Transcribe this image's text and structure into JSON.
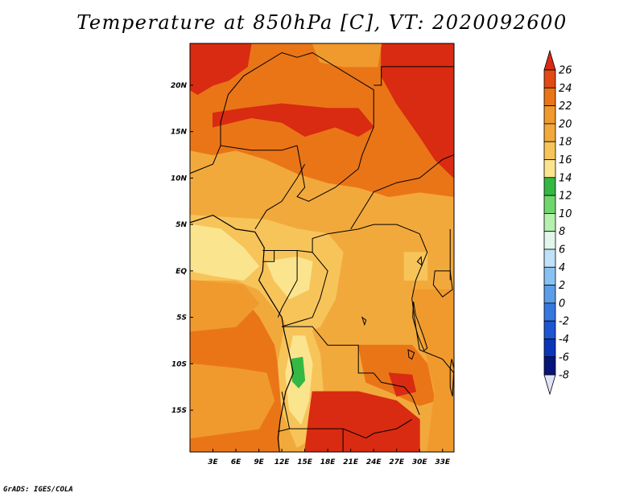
{
  "title": "Temperature at 850hPa [C], VT: 2020092600",
  "credit": "GrADS: IGES/COLA",
  "map": {
    "type": "filled-contour-map",
    "variable": "Temperature at 850hPa",
    "units": "C",
    "valid_time": "2020092600",
    "region_lon_range": [
      0,
      34.5
    ],
    "region_lat_range": [
      -19.5,
      24.5
    ],
    "lat_ticks": [
      {
        "value": 20,
        "label": "20N"
      },
      {
        "value": 15,
        "label": "15N"
      },
      {
        "value": 10,
        "label": "10N"
      },
      {
        "value": 5,
        "label": "5N"
      },
      {
        "value": 0,
        "label": "EQ"
      },
      {
        "value": -5,
        "label": "5S"
      },
      {
        "value": -10,
        "label": "10S"
      },
      {
        "value": -15,
        "label": "15S"
      }
    ],
    "lon_ticks": [
      {
        "value": 3,
        "label": "3E"
      },
      {
        "value": 6,
        "label": "6E"
      },
      {
        "value": 9,
        "label": "9E"
      },
      {
        "value": 12,
        "label": "12E"
      },
      {
        "value": 15,
        "label": "15E"
      },
      {
        "value": 18,
        "label": "18E"
      },
      {
        "value": 21,
        "label": "21E"
      },
      {
        "value": 24,
        "label": "24E"
      },
      {
        "value": 27,
        "label": "27E"
      },
      {
        "value": 30,
        "label": "30E"
      },
      {
        "value": 33,
        "label": "33E"
      }
    ],
    "base_color": "#f2a93c",
    "regions": [
      {
        "color": "#ea7517",
        "pts": [
          [
            0,
            24.5
          ],
          [
            34.5,
            24.5
          ],
          [
            34.5,
            8
          ],
          [
            30,
            8.5
          ],
          [
            26,
            8
          ],
          [
            22,
            9
          ],
          [
            18,
            9.5
          ],
          [
            14,
            10.5
          ],
          [
            10,
            12
          ],
          [
            6,
            13
          ],
          [
            3,
            12.5
          ],
          [
            0,
            13
          ]
        ]
      },
      {
        "color": "#d92b11",
        "pts": [
          [
            0,
            24.5
          ],
          [
            8,
            24.5
          ],
          [
            7.5,
            22
          ],
          [
            5,
            20.5
          ],
          [
            3,
            20
          ],
          [
            1,
            19
          ],
          [
            0,
            19.5
          ]
        ]
      },
      {
        "color": "#d92b11",
        "pts": [
          [
            3,
            15.5
          ],
          [
            8,
            16.5
          ],
          [
            12,
            16
          ],
          [
            15,
            14.5
          ],
          [
            19,
            15.5
          ],
          [
            22,
            14.5
          ],
          [
            24,
            15.5
          ],
          [
            22,
            17.5
          ],
          [
            18,
            17.5
          ],
          [
            12,
            18
          ],
          [
            7,
            17.5
          ],
          [
            3,
            17
          ]
        ]
      },
      {
        "color": "#d92b11",
        "pts": [
          [
            25,
            24.5
          ],
          [
            34.5,
            24.5
          ],
          [
            34.5,
            10
          ],
          [
            32,
            12
          ],
          [
            30,
            14.5
          ],
          [
            27,
            18
          ],
          [
            25,
            21
          ]
        ]
      },
      {
        "color": "#f09a2e",
        "pts": [
          [
            16,
            24.5
          ],
          [
            25,
            24.5
          ],
          [
            24.5,
            22
          ],
          [
            20,
            22
          ],
          [
            17,
            22.5
          ]
        ]
      },
      {
        "color": "#f2a93c",
        "pts": [
          [
            0,
            11.5
          ],
          [
            6,
            12
          ],
          [
            10,
            11
          ],
          [
            14,
            10
          ],
          [
            17,
            9
          ],
          [
            20,
            8.5
          ],
          [
            24,
            8
          ],
          [
            28,
            7.5
          ],
          [
            34.5,
            7.5
          ],
          [
            34.5,
            3
          ],
          [
            28,
            3.5
          ],
          [
            22,
            4
          ],
          [
            16,
            4.5
          ],
          [
            10,
            5.5
          ],
          [
            0,
            6
          ]
        ]
      },
      {
        "color": "#f7c45a",
        "pts": [
          [
            0,
            6
          ],
          [
            10,
            5.5
          ],
          [
            14,
            4.5
          ],
          [
            18,
            4
          ],
          [
            20,
            2
          ],
          [
            19,
            -3
          ],
          [
            17,
            -6
          ],
          [
            14,
            -7
          ],
          [
            11,
            -4
          ],
          [
            9,
            -2
          ],
          [
            6,
            -1
          ],
          [
            0,
            -1
          ]
        ]
      },
      {
        "color": "#fbe48e",
        "pts": [
          [
            0,
            5
          ],
          [
            4,
            4.5
          ],
          [
            7,
            2.5
          ],
          [
            9,
            0.5
          ],
          [
            7,
            -1
          ],
          [
            3,
            -0.5
          ],
          [
            0,
            0
          ]
        ]
      },
      {
        "color": "#fbe48e",
        "pts": [
          [
            10,
            1
          ],
          [
            14,
            1.5
          ],
          [
            16,
            1
          ],
          [
            15.5,
            -2
          ],
          [
            13,
            -3
          ],
          [
            11,
            -1
          ]
        ]
      },
      {
        "color": "#ea7517",
        "pts": [
          [
            0,
            -2.5
          ],
          [
            6,
            -2
          ],
          [
            9,
            -5
          ],
          [
            11,
            -8
          ],
          [
            12,
            -13
          ],
          [
            11.5,
            -19.5
          ],
          [
            0,
            -19.5
          ]
        ]
      },
      {
        "color": "#f09a2e",
        "pts": [
          [
            0,
            -1
          ],
          [
            7,
            -1.5
          ],
          [
            9,
            -3.5
          ],
          [
            6,
            -6
          ],
          [
            0,
            -6.5
          ]
        ]
      },
      {
        "color": "#f09a2e",
        "pts": [
          [
            0,
            -10
          ],
          [
            6,
            -10.5
          ],
          [
            10,
            -11
          ],
          [
            11,
            -14
          ],
          [
            9,
            -17
          ],
          [
            0,
            -18
          ]
        ]
      },
      {
        "color": "#f7c45a",
        "pts": [
          [
            12.5,
            -5.5
          ],
          [
            15.5,
            -5.5
          ],
          [
            17,
            -9
          ],
          [
            17.5,
            -14
          ],
          [
            16,
            -18
          ],
          [
            14,
            -19
          ],
          [
            12,
            -15
          ],
          [
            11.5,
            -10
          ]
        ]
      },
      {
        "color": "#fbe48e",
        "pts": [
          [
            13.5,
            -7
          ],
          [
            15,
            -7
          ],
          [
            16,
            -10
          ],
          [
            15.5,
            -14
          ],
          [
            14.5,
            -16.5
          ],
          [
            13,
            -15
          ],
          [
            12.5,
            -11
          ]
        ]
      },
      {
        "color": "#35b843",
        "pts": [
          [
            13.3,
            -9.5
          ],
          [
            14.7,
            -9.3
          ],
          [
            15,
            -11.8
          ],
          [
            14.2,
            -12.6
          ],
          [
            13.4,
            -11.9
          ]
        ]
      },
      {
        "color": "#d92b11",
        "pts": [
          [
            16,
            -13
          ],
          [
            22,
            -13
          ],
          [
            27,
            -14
          ],
          [
            30,
            -16
          ],
          [
            30,
            -19.5
          ],
          [
            15,
            -19.5
          ],
          [
            15.5,
            -16
          ]
        ]
      },
      {
        "color": "#ea7517",
        "pts": [
          [
            22,
            -8
          ],
          [
            29,
            -8
          ],
          [
            31,
            -10
          ],
          [
            32,
            -14
          ],
          [
            30,
            -14.5
          ],
          [
            26,
            -13
          ],
          [
            23,
            -12
          ]
        ]
      },
      {
        "color": "#d92b11",
        "pts": [
          [
            26,
            -11
          ],
          [
            29,
            -11.2
          ],
          [
            29.5,
            -13
          ],
          [
            27,
            -13.5
          ]
        ]
      },
      {
        "color": "#f09a2e",
        "pts": [
          [
            29,
            -2
          ],
          [
            34.5,
            -2
          ],
          [
            34.5,
            -19.5
          ],
          [
            31,
            -19.5
          ],
          [
            32,
            -13
          ],
          [
            30,
            -6
          ]
        ]
      },
      {
        "color": "#f7c45a",
        "pts": [
          [
            28,
            2
          ],
          [
            31,
            2
          ],
          [
            31,
            -1
          ],
          [
            28,
            -1
          ]
        ]
      }
    ],
    "country_borders": [
      [
        [
          0,
          10.5
        ],
        [
          3,
          11.5
        ],
        [
          4,
          13.5
        ],
        [
          8,
          13
        ],
        [
          12,
          13
        ],
        [
          14,
          13.5
        ]
      ],
      [
        [
          4,
          13.5
        ],
        [
          4,
          16
        ],
        [
          5,
          19
        ],
        [
          7,
          21
        ],
        [
          12,
          23.5
        ],
        [
          14,
          23
        ]
      ],
      [
        [
          14,
          23
        ],
        [
          16,
          23.5
        ],
        [
          24,
          19.5
        ],
        [
          24,
          15.5
        ],
        [
          22.5,
          12.5
        ],
        [
          22,
          11
        ]
      ],
      [
        [
          24,
          20
        ],
        [
          25,
          20
        ],
        [
          25,
          22
        ],
        [
          34.5,
          22
        ]
      ],
      [
        [
          14,
          13.5
        ],
        [
          15,
          9
        ],
        [
          14,
          8
        ],
        [
          15.5,
          7.5
        ],
        [
          19,
          9
        ],
        [
          22,
          11
        ]
      ],
      [
        [
          8.5,
          4.5
        ],
        [
          10,
          6.5
        ],
        [
          12,
          7.5
        ],
        [
          14,
          10
        ],
        [
          15,
          11.5
        ]
      ],
      [
        [
          9.5,
          2.2
        ],
        [
          14,
          2.2
        ],
        [
          16,
          2
        ],
        [
          16,
          3.5
        ],
        [
          18,
          4
        ],
        [
          22,
          4.5
        ],
        [
          24,
          5
        ],
        [
          27,
          5
        ],
        [
          30,
          4
        ]
      ],
      [
        [
          11,
          2.2
        ],
        [
          11,
          1
        ],
        [
          9.5,
          1
        ]
      ],
      [
        [
          14,
          2.2
        ],
        [
          14,
          -1
        ],
        [
          12,
          -4
        ],
        [
          11.5,
          -5
        ]
      ],
      [
        [
          16,
          2
        ],
        [
          18,
          0
        ],
        [
          17,
          -3
        ],
        [
          16,
          -5
        ],
        [
          12,
          -6
        ]
      ],
      [
        [
          30,
          4
        ],
        [
          31,
          2
        ],
        [
          29.5,
          -1
        ],
        [
          29,
          -3
        ],
        [
          29.5,
          -6
        ],
        [
          30,
          -8.5
        ]
      ],
      [
        [
          12,
          -6
        ],
        [
          16,
          -6
        ],
        [
          18,
          -8
        ],
        [
          22,
          -8
        ],
        [
          22,
          -11
        ],
        [
          24,
          -11
        ]
      ],
      [
        [
          12,
          -13
        ],
        [
          13,
          -17
        ],
        [
          11.5,
          -17.3
        ]
      ],
      [
        [
          13,
          -17
        ],
        [
          20,
          -17
        ],
        [
          23,
          -18
        ],
        [
          24,
          -17.5
        ],
        [
          27,
          -17
        ],
        [
          29,
          -16
        ]
      ],
      [
        [
          24,
          -11
        ],
        [
          25,
          -12
        ],
        [
          28,
          -12.5
        ],
        [
          29,
          -13.5
        ],
        [
          30,
          -15.5
        ]
      ],
      [
        [
          30,
          -8.5
        ],
        [
          33,
          -9.5
        ],
        [
          34.5,
          -11
        ]
      ],
      [
        [
          21,
          4.5
        ],
        [
          24,
          8.5
        ],
        [
          27,
          9.5
        ],
        [
          30,
          10
        ]
      ],
      [
        [
          30,
          10
        ],
        [
          33,
          12
        ],
        [
          34.5,
          12.5
        ]
      ],
      [
        [
          34,
          -1
        ],
        [
          34,
          4.5
        ]
      ],
      [
        [
          20,
          -17
        ],
        [
          20,
          -19.5
        ]
      ]
    ],
    "coastline": [
      [
        0,
        5.2
      ],
      [
        3,
        6
      ],
      [
        6,
        4.5
      ],
      [
        8.5,
        4.2
      ],
      [
        9.7,
        2.5
      ],
      [
        9.5,
        0
      ],
      [
        9,
        -1
      ],
      [
        10.5,
        -3
      ],
      [
        12,
        -5
      ],
      [
        12.3,
        -6.5
      ],
      [
        13,
        -9
      ],
      [
        13.5,
        -11
      ],
      [
        12.5,
        -13
      ],
      [
        11.8,
        -16
      ],
      [
        11.5,
        -18
      ],
      [
        11.7,
        -19.5
      ]
    ],
    "lakes": [
      [
        [
          29.2,
          -3.3
        ],
        [
          29.5,
          -4.8
        ],
        [
          30.5,
          -7
        ],
        [
          31,
          -8.3
        ],
        [
          30.6,
          -8.6
        ],
        [
          29.8,
          -7
        ],
        [
          29.1,
          -5
        ]
      ],
      [
        [
          34.2,
          -9.5
        ],
        [
          34.5,
          -10.5
        ],
        [
          34.3,
          -13.5
        ],
        [
          34,
          -12.5
        ],
        [
          34,
          -10.5
        ]
      ],
      [
        [
          32,
          0
        ],
        [
          34,
          0
        ],
        [
          34.3,
          -2
        ],
        [
          33,
          -2.8
        ],
        [
          31.8,
          -1.5
        ]
      ],
      [
        [
          29.7,
          1
        ],
        [
          30.3,
          0.6
        ],
        [
          30.2,
          1.5
        ]
      ],
      [
        [
          28.5,
          -8.5
        ],
        [
          29.3,
          -8.8
        ],
        [
          29,
          -9.5
        ],
        [
          28.6,
          -9.3
        ]
      ],
      [
        [
          22.5,
          -5
        ],
        [
          23,
          -5.3
        ],
        [
          22.8,
          -5.8
        ]
      ]
    ]
  },
  "colorbar": {
    "levels": [
      "26",
      "24",
      "22",
      "20",
      "18",
      "16",
      "14",
      "12",
      "10",
      "8",
      "6",
      "4",
      "2",
      "0",
      "-2",
      "-4",
      "-6",
      "-8"
    ],
    "colors_top_to_bottom": [
      "#d92b11",
      "#e14a14",
      "#ea7517",
      "#f09a2e",
      "#f2a93c",
      "#f7c45a",
      "#fbe48e",
      "#35b843",
      "#6fd66b",
      "#b6f0ae",
      "#e3f6ec",
      "#bfe2f8",
      "#88c2f3",
      "#5b9de8",
      "#3877df",
      "#1e56d2",
      "#0b35b8",
      "#06157a",
      "#dfe3fb"
    ]
  }
}
